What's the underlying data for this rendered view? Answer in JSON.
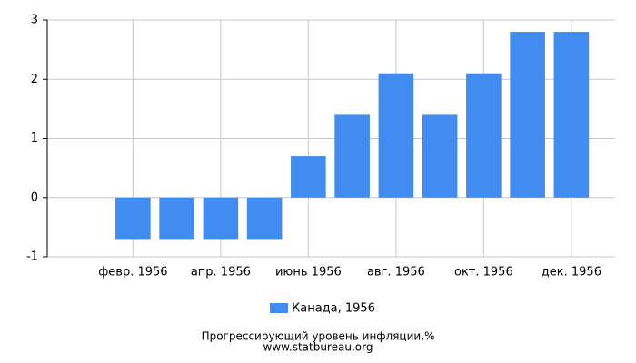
{
  "chart_data": {
    "type": "bar",
    "title": "Прогрессирующий уровень инфляции,%",
    "subtitle": "www.statbureau.org",
    "categories": [
      null,
      "февр. 1956",
      null,
      "апр. 1956",
      null,
      "июнь 1956",
      null,
      "авг. 1956",
      null,
      "окт. 1956",
      null,
      "дек. 1956"
    ],
    "series": [
      {
        "name": "Канада, 1956",
        "color": "#418cf0",
        "values": [
          null,
          -0.7,
          -0.7,
          -0.7,
          -0.7,
          0.7,
          1.4,
          2.1,
          1.4,
          2.1,
          2.8,
          2.8
        ]
      }
    ],
    "ylim": [
      -1,
      3
    ],
    "yticks": [
      -1,
      0,
      1,
      2,
      3
    ],
    "grid": true
  }
}
